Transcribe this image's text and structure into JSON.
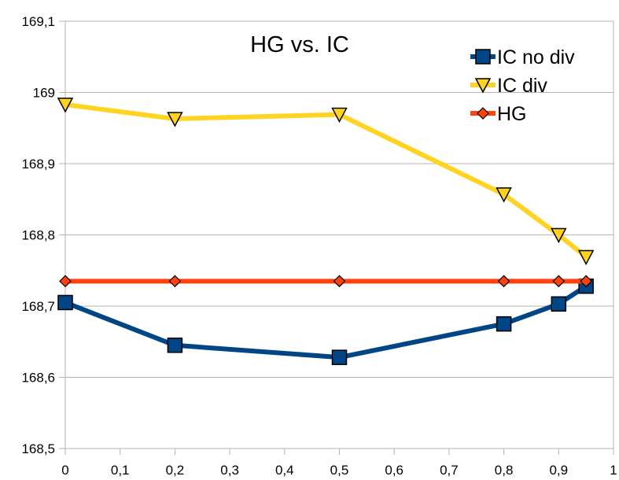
{
  "chart_data": {
    "type": "line",
    "title": "HG vs. IC",
    "xlabel": "",
    "ylabel": "",
    "xlim": [
      0,
      1
    ],
    "ylim": [
      168.5,
      169.1
    ],
    "x_ticks": [
      "0",
      "0,1",
      "0,2",
      "0,3",
      "0,4",
      "0,5",
      "0,6",
      "0,7",
      "0,8",
      "0,9",
      "1"
    ],
    "y_ticks": [
      "168,5",
      "168,6",
      "168,7",
      "168,8",
      "168,9",
      "169",
      "169,1"
    ],
    "grid": "horizontal",
    "legend_position": "top-right",
    "series": [
      {
        "name": "IC no div",
        "color": "#004586",
        "marker": "square",
        "x": [
          0,
          0.2,
          0.5,
          0.8,
          0.9,
          0.95
        ],
        "values": [
          168.705,
          168.645,
          168.628,
          168.675,
          168.703,
          168.728
        ]
      },
      {
        "name": "IC div",
        "color": "#FFD320",
        "marker": "triangle-down",
        "x": [
          0,
          0.2,
          0.5,
          0.8,
          0.9,
          0.95
        ],
        "values": [
          168.983,
          168.963,
          168.969,
          168.857,
          168.8,
          168.769
        ]
      },
      {
        "name": "HG",
        "color": "#FF420E",
        "marker": "diamond",
        "x": [
          0,
          0.2,
          0.5,
          0.8,
          0.9,
          0.95
        ],
        "values": [
          168.735,
          168.735,
          168.735,
          168.735,
          168.735,
          168.735
        ]
      }
    ]
  }
}
